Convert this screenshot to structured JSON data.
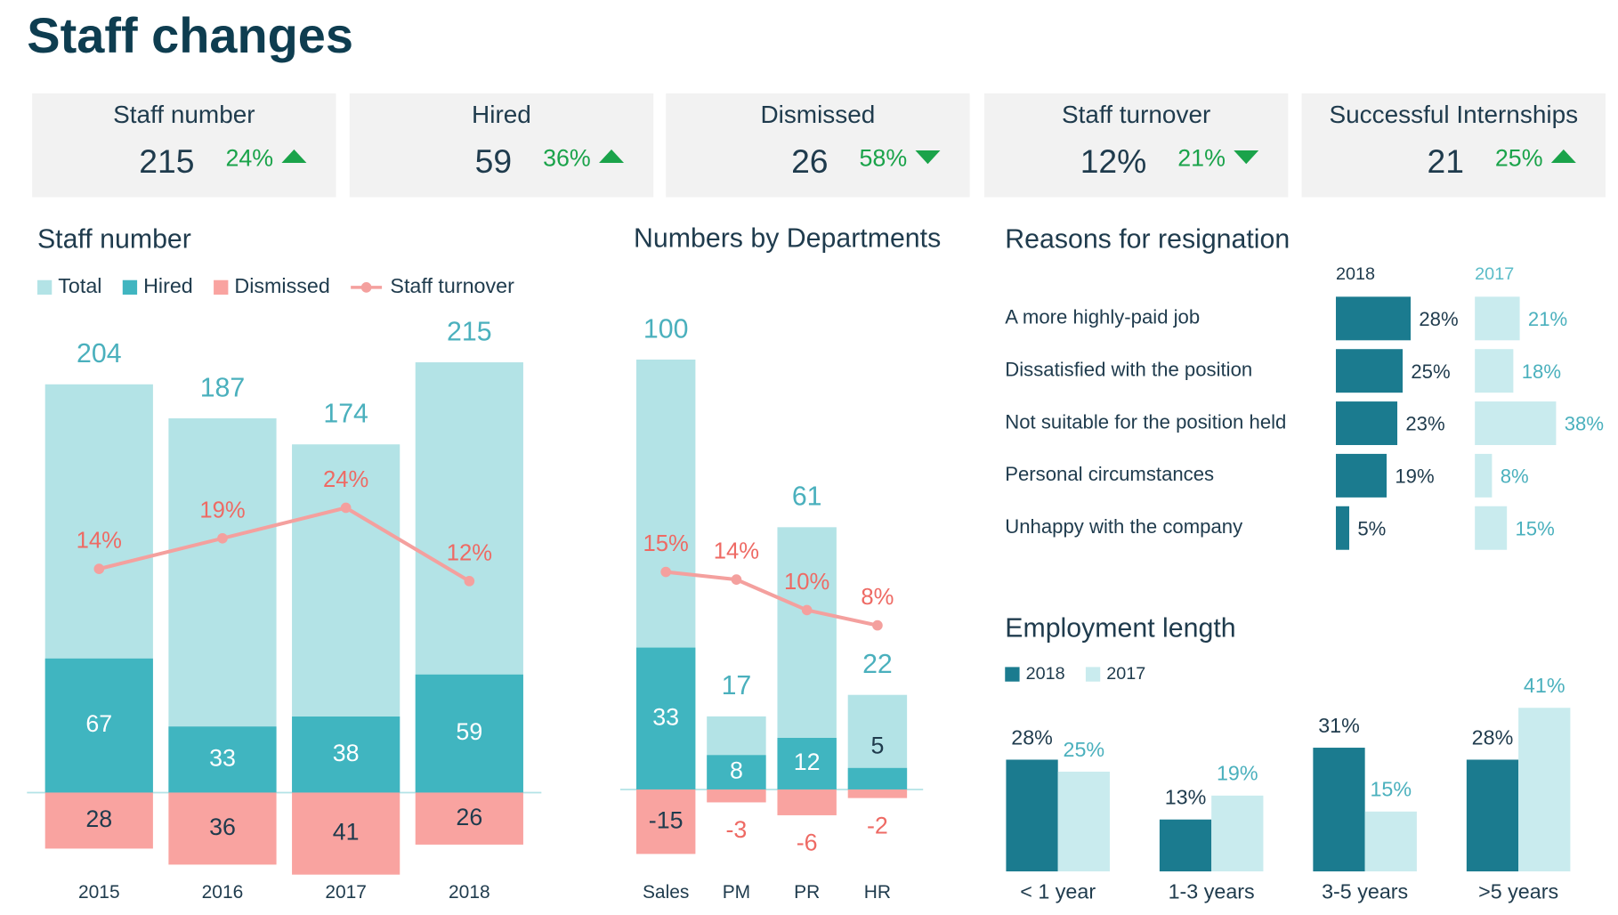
{
  "title": "Staff changes",
  "kpis": [
    {
      "label": "Staff number",
      "value": "215",
      "change": "24%",
      "trend": "up"
    },
    {
      "label": "Hired",
      "value": "59",
      "change": "36%",
      "trend": "up"
    },
    {
      "label": "Dismissed",
      "value": "26",
      "change": "58%",
      "trend": "down"
    },
    {
      "label": "Staff turnover",
      "value": "12%",
      "change": "21%",
      "trend": "down"
    },
    {
      "label": "Successful Internships",
      "value": "21",
      "change": "25%",
      "trend": "up"
    }
  ],
  "chart_data": [
    {
      "type": "bar",
      "title": "Staff number",
      "legend": "top-left",
      "categories": [
        "2015",
        "2016",
        "2017",
        "2018"
      ],
      "series": [
        {
          "name": "Total",
          "color": "#b3e3e6",
          "values": [
            204,
            187,
            174,
            215
          ]
        },
        {
          "name": "Hired",
          "color": "#40b5c0",
          "values": [
            67,
            33,
            38,
            59
          ]
        },
        {
          "name": "Dismissed",
          "color": "#f9a3a0",
          "values": [
            -28,
            -36,
            -41,
            -26
          ],
          "value_labels": [
            "28",
            "36",
            "41",
            "26"
          ]
        },
        {
          "name": "Staff turnover",
          "type": "line",
          "axis": "y2",
          "color": "#f4a09e",
          "values": [
            14,
            19,
            24,
            12
          ],
          "value_labels": [
            "14%",
            "19%",
            "24%",
            "12%"
          ]
        }
      ],
      "ylim": [
        -50,
        240
      ],
      "y2lim": [
        -39,
        56
      ]
    },
    {
      "type": "bar",
      "title": "Numbers by Departments",
      "categories": [
        "Sales",
        "PM",
        "PR",
        "HR"
      ],
      "series": [
        {
          "name": "Total",
          "color": "#b3e3e6",
          "values": [
            100,
            17,
            61,
            22
          ]
        },
        {
          "name": "Hired",
          "color": "#40b5c0",
          "values": [
            33,
            8,
            12,
            5
          ]
        },
        {
          "name": "Dismissed",
          "color": "#f9a3a0",
          "values": [
            -15,
            -3,
            -6,
            -2
          ]
        },
        {
          "name": "Staff turnover",
          "type": "line",
          "axis": "y2",
          "color": "#f4a09e",
          "values": [
            15,
            14,
            10,
            8
          ],
          "value_labels": [
            "15%",
            "14%",
            "10%",
            "8%"
          ]
        }
      ],
      "ylim": [
        -24,
        111
      ],
      "y2lim": [
        -27,
        49
      ]
    },
    {
      "type": "hbar",
      "title": "Reasons for resignation",
      "categories": [
        "A more highly-paid job",
        "Dissatisfied with the position",
        "Not suitable for the position held",
        "Personal circumstances",
        "Unhappy with the company"
      ],
      "series": [
        {
          "name": "2018",
          "color": "#1b7b8f",
          "values": [
            28,
            25,
            23,
            19,
            5
          ],
          "value_labels": [
            "28%",
            "25%",
            "23%",
            "19%",
            "5%"
          ],
          "xlim": [
            0,
            40
          ]
        },
        {
          "name": "2017",
          "color": "#c9ebee",
          "values": [
            21,
            18,
            38,
            8,
            15
          ],
          "value_labels": [
            "21%",
            "18%",
            "38%",
            "8%",
            "15%"
          ],
          "xlim": [
            0,
            50
          ]
        }
      ]
    },
    {
      "type": "grouped_bar",
      "title": "Employment length",
      "legend": "top-left",
      "categories": [
        "< 1 year",
        "1-3 years",
        "3-5 years",
        ">5 years"
      ],
      "series": [
        {
          "name": "2018",
          "color": "#1b7b8f",
          "values": [
            28,
            13,
            31,
            28
          ],
          "value_labels": [
            "28%",
            "13%",
            "31%",
            "28%"
          ]
        },
        {
          "name": "2017",
          "color": "#c9ebee",
          "values": [
            25,
            19,
            15,
            41
          ],
          "value_labels": [
            "25%",
            "19%",
            "15%",
            "41%"
          ]
        }
      ],
      "ylim": [
        0,
        52
      ]
    }
  ]
}
